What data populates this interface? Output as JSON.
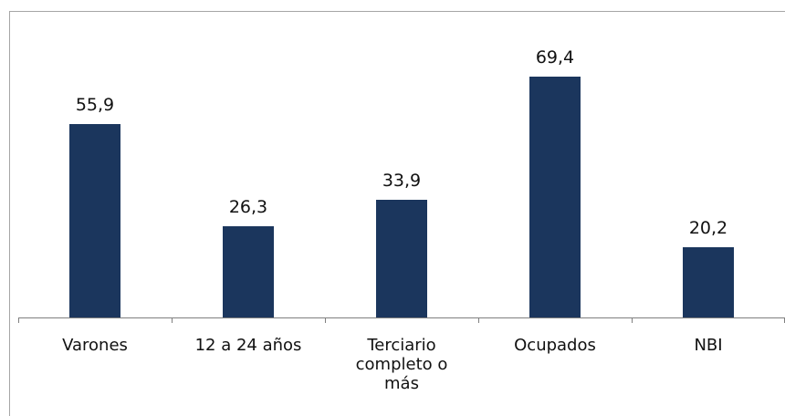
{
  "chart_data": {
    "type": "bar",
    "categories": [
      "Varones",
      "12 a 24 años",
      "Terciario completo o más",
      "Ocupados",
      "NBI"
    ],
    "values": [
      55.9,
      26.3,
      33.9,
      69.4,
      20.2
    ],
    "value_labels": [
      "55,9",
      "26,3",
      "33,9",
      "69,4",
      "20,2"
    ],
    "color": "#1b365d"
  }
}
